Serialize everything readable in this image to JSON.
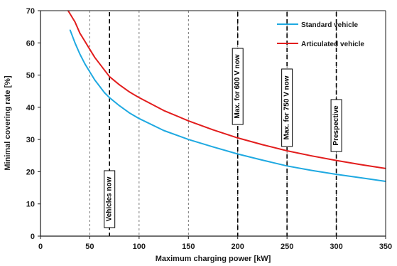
{
  "chart_data": {
    "type": "line",
    "title": "",
    "xlabel": "Maximum charging power [kW]",
    "ylabel": "Minimal covering rate [%]",
    "xlim": [
      0,
      350
    ],
    "ylim": [
      0,
      70
    ],
    "xticks": [
      0,
      50,
      100,
      150,
      200,
      250,
      300,
      350
    ],
    "yticks": [
      0,
      10,
      20,
      30,
      40,
      50,
      60,
      70
    ],
    "grid": "vertical dashed at x ticks",
    "legend_position": "top-right",
    "series": [
      {
        "name": "Standard vehicle",
        "color": "#1fa9e1",
        "points": [
          [
            30,
            64
          ],
          [
            35,
            60
          ],
          [
            40,
            56.5
          ],
          [
            45,
            53.5
          ],
          [
            50,
            51
          ],
          [
            55,
            48.5
          ],
          [
            60,
            46.5
          ],
          [
            65,
            44.5
          ],
          [
            70,
            43
          ],
          [
            80,
            40.5
          ],
          [
            90,
            38.3
          ],
          [
            100,
            36.5
          ],
          [
            125,
            32.8
          ],
          [
            150,
            30
          ],
          [
            175,
            27.7
          ],
          [
            200,
            25.5
          ],
          [
            225,
            23.6
          ],
          [
            250,
            21.8
          ],
          [
            275,
            20.4
          ],
          [
            300,
            19.2
          ],
          [
            325,
            18.1
          ],
          [
            350,
            17
          ]
        ]
      },
      {
        "name": "Articulated vehicle",
        "color": "#e21d1d",
        "points": [
          [
            28,
            70
          ],
          [
            35,
            66.5
          ],
          [
            40,
            63
          ],
          [
            45,
            60.5
          ],
          [
            50,
            58
          ],
          [
            55,
            55.5
          ],
          [
            60,
            53.5
          ],
          [
            65,
            51.5
          ],
          [
            70,
            49.5
          ],
          [
            80,
            47
          ],
          [
            90,
            44.8
          ],
          [
            100,
            43
          ],
          [
            125,
            39
          ],
          [
            150,
            35.8
          ],
          [
            175,
            33
          ],
          [
            200,
            30.5
          ],
          [
            225,
            28.4
          ],
          [
            250,
            26.5
          ],
          [
            275,
            24.9
          ],
          [
            300,
            23.5
          ],
          [
            325,
            22.2
          ],
          [
            350,
            21
          ]
        ]
      }
    ],
    "annotations": [
      {
        "label": "Vehicles now",
        "x": 70
      },
      {
        "label": "Max. for 600 V now",
        "x": 200
      },
      {
        "label": "Max. for 750 V now",
        "x": 250
      },
      {
        "label": "Prespective",
        "x": 300
      }
    ]
  }
}
